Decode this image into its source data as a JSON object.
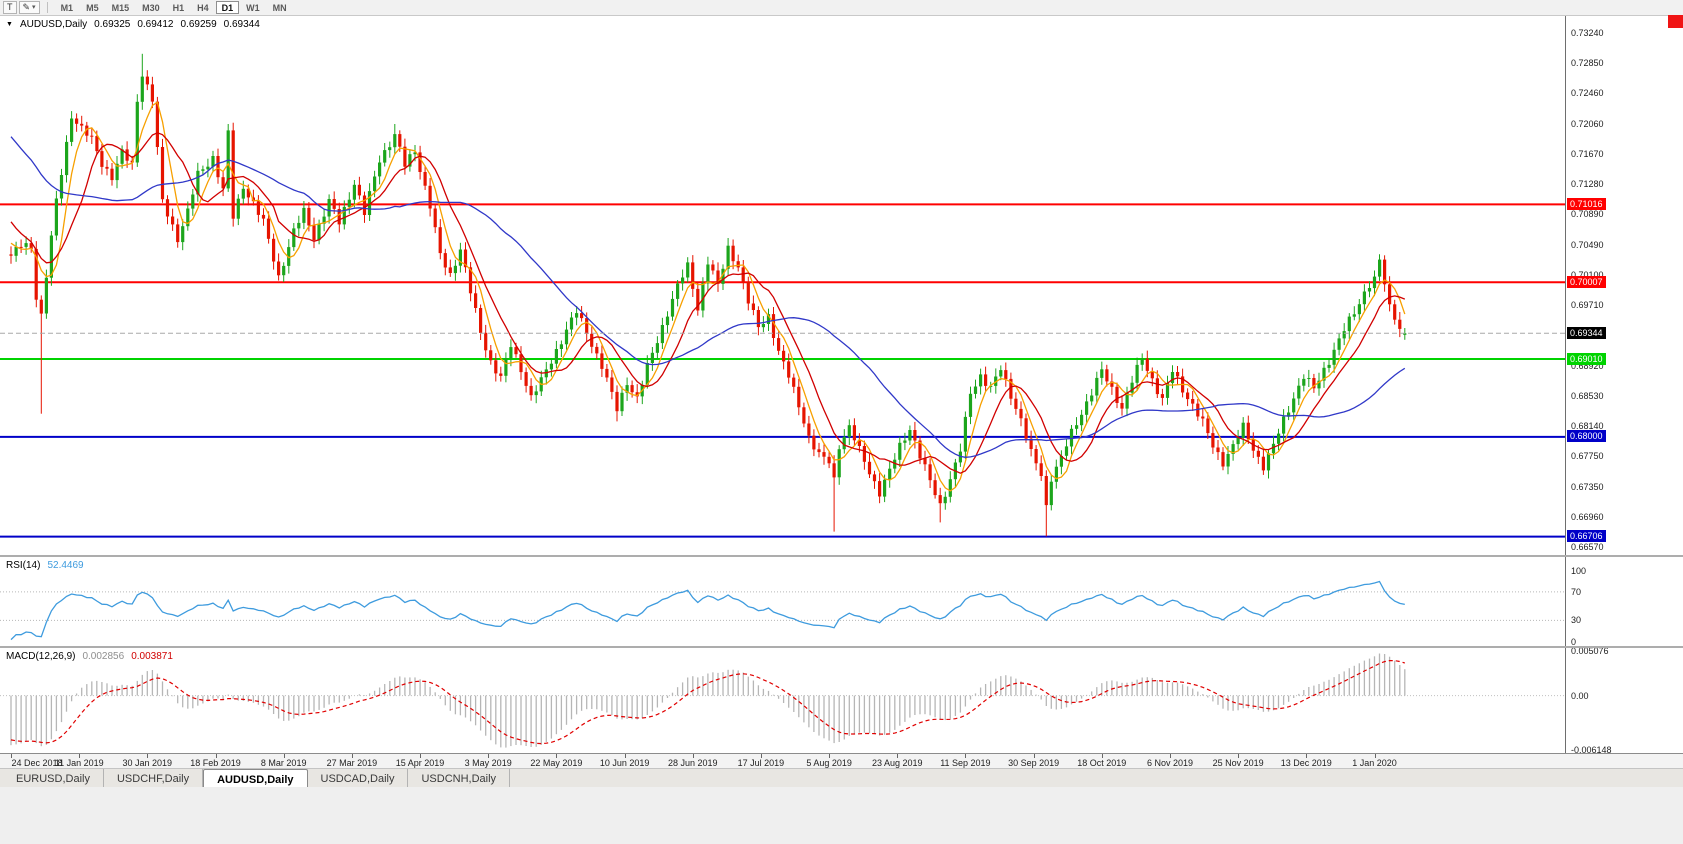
{
  "toolbar": {
    "text_tool_label": "T",
    "timeframes": [
      "M1",
      "M5",
      "M15",
      "M30",
      "H1",
      "H4",
      "D1",
      "W1",
      "MN"
    ],
    "active_timeframe": "D1"
  },
  "chart": {
    "symbol_label": "AUDUSD,Daily",
    "ohlc": {
      "open": "0.69325",
      "high": "0.69412",
      "low": "0.69259",
      "close": "0.69344"
    },
    "current_price": "0.69344",
    "price_axis": [
      {
        "t": "0.73240",
        "v": 0.7324
      },
      {
        "t": "0.72850",
        "v": 0.7285
      },
      {
        "t": "0.72460",
        "v": 0.7246
      },
      {
        "t": "0.72060",
        "v": 0.7206
      },
      {
        "t": "0.71670",
        "v": 0.7167
      },
      {
        "t": "0.71280",
        "v": 0.7128
      },
      {
        "t": "0.70890",
        "v": 0.7089
      },
      {
        "t": "0.70490",
        "v": 0.7049
      },
      {
        "t": "0.70100",
        "v": 0.701
      },
      {
        "t": "0.69710",
        "v": 0.6971
      },
      {
        "t": "0.68920",
        "v": 0.6892
      },
      {
        "t": "0.68530",
        "v": 0.6853
      },
      {
        "t": "0.68140",
        "v": 0.6814
      },
      {
        "t": "0.67750",
        "v": 0.6775
      },
      {
        "t": "0.67350",
        "v": 0.6735
      },
      {
        "t": "0.66960",
        "v": 0.6696
      },
      {
        "t": "0.66570",
        "v": 0.6657
      }
    ],
    "levels": [
      {
        "t": "0.71016",
        "v": 0.71016,
        "color": "#ff0000"
      },
      {
        "t": "0.70007",
        "v": 0.70007,
        "color": "#ff0000"
      },
      {
        "t": "0.69010",
        "v": 0.6901,
        "color": "#00d300"
      },
      {
        "t": "0.68000",
        "v": 0.68,
        "color": "#0000c8"
      },
      {
        "t": "0.66706",
        "v": 0.66706,
        "color": "#0000c8"
      }
    ],
    "colors": {
      "up": "#1ca51c",
      "down": "#e61400",
      "ma_fast": "#f7a000",
      "ma_mid": "#d10000",
      "ma_slow": "#3038c8",
      "bid_line": "#a8a8a8",
      "current_badge_bg": "#000000"
    }
  },
  "rsi": {
    "name": "RSI(14)",
    "value": "52.4469",
    "color": "#3e9bde",
    "axis": [
      {
        "t": "100",
        "v": 100
      },
      {
        "t": "70",
        "v": 70
      },
      {
        "t": "30",
        "v": 30
      },
      {
        "t": "0",
        "v": 0
      }
    ],
    "levels": [
      70,
      30
    ]
  },
  "macd": {
    "name": "MACD(12,26,9)",
    "value_main": "0.002856",
    "value_signal": "0.003871",
    "hist_color": "#b6b6b6",
    "signal_color": "#e00000",
    "axis": [
      {
        "t": "0.005076",
        "v": 0.005076
      },
      {
        "t": "0.00",
        "v": 0
      },
      {
        "t": "-0.006148",
        "v": -0.006148
      }
    ]
  },
  "time_axis": {
    "labels": [
      "24 Dec 2018",
      "11 Jan 2019",
      "30 Jan 2019",
      "18 Feb 2019",
      "8 Mar 2019",
      "27 Mar 2019",
      "15 Apr 2019",
      "3 May 2019",
      "22 May 2019",
      "10 Jun 2019",
      "28 Jun 2019",
      "17 Jul 2019",
      "5 Aug 2019",
      "23 Aug 2019",
      "11 Sep 2019",
      "30 Sep 2019",
      "18 Oct 2019",
      "6 Nov 2019",
      "25 Nov 2019",
      "13 Dec 2019",
      "1 Jan 2020"
    ]
  },
  "tabs": {
    "items": [
      "EURUSD,Daily",
      "USDCHF,Daily",
      "AUDUSD,Daily",
      "USDCAD,Daily",
      "USDCNH,Daily"
    ],
    "active": "AUDUSD,Daily"
  },
  "chart_data": {
    "type": "candlestick",
    "symbol": "AUDUSD",
    "period": "Daily",
    "bars": 277,
    "view": {
      "price_top": 0.73461,
      "price_bottom": 0.66467
    },
    "close_anchors": [
      [
        0,
        0.7035
      ],
      [
        2,
        0.7048
      ],
      [
        4,
        0.7046
      ],
      [
        5,
        0.6983
      ],
      [
        6,
        0.6958
      ],
      [
        7,
        0.701
      ],
      [
        9,
        0.7105
      ],
      [
        12,
        0.7218
      ],
      [
        14,
        0.72
      ],
      [
        16,
        0.7185
      ],
      [
        18,
        0.7155
      ],
      [
        20,
        0.7138
      ],
      [
        22,
        0.7168
      ],
      [
        24,
        0.7152
      ],
      [
        25,
        0.7238
      ],
      [
        26,
        0.7272
      ],
      [
        28,
        0.7238
      ],
      [
        30,
        0.7105
      ],
      [
        33,
        0.7058
      ],
      [
        35,
        0.7092
      ],
      [
        37,
        0.714
      ],
      [
        40,
        0.7163
      ],
      [
        42,
        0.712
      ],
      [
        43,
        0.7193
      ],
      [
        44,
        0.7085
      ],
      [
        46,
        0.7126
      ],
      [
        48,
        0.7103
      ],
      [
        50,
        0.7078
      ],
      [
        53,
        0.7008
      ],
      [
        56,
        0.7066
      ],
      [
        58,
        0.7092
      ],
      [
        60,
        0.706
      ],
      [
        63,
        0.7105
      ],
      [
        65,
        0.7078
      ],
      [
        68,
        0.713
      ],
      [
        70,
        0.709
      ],
      [
        73,
        0.716
      ],
      [
        76,
        0.7192
      ],
      [
        78,
        0.7152
      ],
      [
        80,
        0.7172
      ],
      [
        83,
        0.71
      ],
      [
        85,
        0.7035
      ],
      [
        87,
        0.701
      ],
      [
        89,
        0.7045
      ],
      [
        91,
        0.6988
      ],
      [
        93,
        0.6935
      ],
      [
        95,
        0.6898
      ],
      [
        97,
        0.6877
      ],
      [
        99,
        0.6918
      ],
      [
        101,
        0.6888
      ],
      [
        103,
        0.6852
      ],
      [
        105,
        0.6872
      ],
      [
        107,
        0.6898
      ],
      [
        110,
        0.694
      ],
      [
        112,
        0.6962
      ],
      [
        114,
        0.6935
      ],
      [
        117,
        0.6893
      ],
      [
        120,
        0.6835
      ],
      [
        122,
        0.6872
      ],
      [
        124,
        0.685
      ],
      [
        126,
        0.689
      ],
      [
        128,
        0.6925
      ],
      [
        130,
        0.6962
      ],
      [
        132,
        0.6995
      ],
      [
        134,
        0.7021
      ],
      [
        136,
        0.6968
      ],
      [
        138,
        0.7028
      ],
      [
        140,
        0.6995
      ],
      [
        142,
        0.7045
      ],
      [
        144,
        0.7022
      ],
      [
        146,
        0.6975
      ],
      [
        148,
        0.6942
      ],
      [
        150,
        0.6958
      ],
      [
        152,
        0.691
      ],
      [
        154,
        0.6878
      ],
      [
        156,
        0.6842
      ],
      [
        158,
        0.68
      ],
      [
        160,
        0.6775
      ],
      [
        162,
        0.6768
      ],
      [
        163,
        0.6745
      ],
      [
        164,
        0.679
      ],
      [
        166,
        0.6812
      ],
      [
        168,
        0.6782
      ],
      [
        170,
        0.6755
      ],
      [
        172,
        0.6728
      ],
      [
        174,
        0.6755
      ],
      [
        176,
        0.6788
      ],
      [
        178,
        0.6812
      ],
      [
        180,
        0.6775
      ],
      [
        182,
        0.6742
      ],
      [
        184,
        0.6712
      ],
      [
        186,
        0.6745
      ],
      [
        188,
        0.6782
      ],
      [
        190,
        0.6858
      ],
      [
        192,
        0.688
      ],
      [
        194,
        0.6862
      ],
      [
        196,
        0.6888
      ],
      [
        198,
        0.6855
      ],
      [
        200,
        0.6822
      ],
      [
        202,
        0.6778
      ],
      [
        204,
        0.6752
      ],
      [
        205,
        0.671
      ],
      [
        206,
        0.6748
      ],
      [
        208,
        0.6772
      ],
      [
        210,
        0.6805
      ],
      [
        212,
        0.6832
      ],
      [
        214,
        0.6858
      ],
      [
        216,
        0.6885
      ],
      [
        218,
        0.6862
      ],
      [
        220,
        0.6838
      ],
      [
        222,
        0.6872
      ],
      [
        224,
        0.6902
      ],
      [
        226,
        0.6875
      ],
      [
        228,
        0.6848
      ],
      [
        230,
        0.6885
      ],
      [
        232,
        0.6862
      ],
      [
        234,
        0.6842
      ],
      [
        236,
        0.6818
      ],
      [
        238,
        0.6788
      ],
      [
        240,
        0.6768
      ],
      [
        242,
        0.6788
      ],
      [
        244,
        0.6812
      ],
      [
        246,
        0.6785
      ],
      [
        248,
        0.6762
      ],
      [
        250,
        0.6788
      ],
      [
        252,
        0.6822
      ],
      [
        254,
        0.6852
      ],
      [
        256,
        0.6878
      ],
      [
        258,
        0.6862
      ],
      [
        260,
        0.6888
      ],
      [
        262,
        0.6912
      ],
      [
        264,
        0.6938
      ],
      [
        266,
        0.6962
      ],
      [
        268,
        0.6988
      ],
      [
        270,
        0.7008
      ],
      [
        271,
        0.703
      ],
      [
        272,
        0.6998
      ],
      [
        273,
        0.6972
      ],
      [
        274,
        0.6952
      ],
      [
        275,
        0.694
      ],
      [
        276,
        0.6934
      ]
    ],
    "wick_overrides": {
      "6": {
        "low": 0.683
      },
      "26": {
        "high": 0.7297
      },
      "43": {
        "high": 0.7206
      },
      "76": {
        "high": 0.7206
      },
      "120": {
        "low": 0.682
      },
      "163": {
        "low": 0.6677
      },
      "184": {
        "low": 0.6689
      },
      "205": {
        "low": 0.6671
      },
      "271": {
        "high": 0.7037
      }
    },
    "last_bar": {
      "open": 0.69325,
      "high": 0.69412,
      "low": 0.69259,
      "close": 0.69344
    },
    "warmup": {
      "bars": 40,
      "start": 0.733,
      "drop": 0.0292,
      "exp": 1.6
    },
    "overlays": [
      {
        "name": "ma-fast",
        "type": "sma",
        "period": 5
      },
      {
        "name": "ma-mid",
        "type": "sma",
        "period": 10
      },
      {
        "name": "ma-slow",
        "type": "sma",
        "period": 34
      }
    ],
    "rsi_period": 14,
    "macd_params": [
      12,
      26,
      9
    ]
  }
}
